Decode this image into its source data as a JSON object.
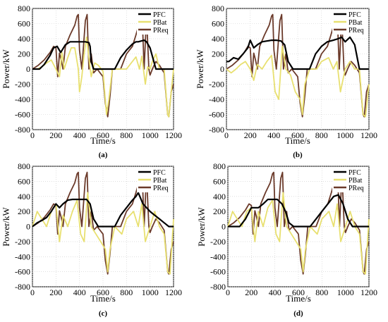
{
  "colors": {
    "PFC": "#000000",
    "PBat": "#e8e070",
    "PReq": "#6b3a2a",
    "grid": "#cccccc"
  },
  "common": {
    "legend": [
      "PFC",
      "PBat",
      "PReq"
    ],
    "xlabel": "Time/s",
    "ylabel": "Power/kW",
    "xlim": [
      0,
      1200
    ],
    "ylim": [
      -800,
      800
    ],
    "xticks": [
      0,
      200,
      400,
      600,
      800,
      1000,
      1200
    ],
    "yticks": [
      -800,
      -600,
      -400,
      -200,
      0,
      200,
      400,
      600,
      800
    ]
  },
  "chart_data": [
    {
      "type": "line",
      "caption": "(a)",
      "xlabel": "Time/s",
      "ylabel": "Power/kW",
      "xlim": [
        0,
        1200
      ],
      "ylim": [
        -800,
        800
      ],
      "grid": true,
      "legend_position": "top-right",
      "series": [
        {
          "name": "PFC",
          "x": [
            0,
            60,
            100,
            150,
            180,
            210,
            240,
            280,
            320,
            360,
            400,
            450,
            480,
            490,
            500,
            520,
            550,
            600,
            650,
            700,
            750,
            800,
            850,
            880,
            900,
            950,
            970,
            1000,
            1050,
            1100,
            1150,
            1200
          ],
          "y": [
            0,
            0,
            60,
            180,
            280,
            300,
            220,
            320,
            360,
            360,
            360,
            360,
            350,
            300,
            100,
            0,
            0,
            0,
            0,
            0,
            150,
            250,
            330,
            360,
            360,
            380,
            360,
            280,
            0,
            0,
            0,
            0
          ]
        },
        {
          "name": "PBat",
          "x": [
            0,
            40,
            80,
            120,
            160,
            200,
            230,
            250,
            270,
            300,
            330,
            360,
            390,
            400,
            420,
            440,
            460,
            480,
            500,
            530,
            560,
            600,
            630,
            650,
            680,
            720,
            800,
            880,
            910,
            930,
            960,
            980,
            1000,
            1020,
            1050,
            1080,
            1120,
            1150,
            1160,
            1180,
            1200
          ],
          "y": [
            0,
            0,
            30,
            80,
            120,
            0,
            -100,
            220,
            0,
            150,
            280,
            280,
            0,
            -300,
            -100,
            200,
            420,
            150,
            -100,
            80,
            50,
            -30,
            -600,
            -400,
            0,
            0,
            0,
            160,
            0,
            170,
            -200,
            30,
            0,
            100,
            200,
            0,
            0,
            -600,
            -630,
            -300,
            0
          ]
        },
        {
          "name": "PReq",
          "x": [
            0,
            50,
            100,
            150,
            180,
            200,
            215,
            230,
            245,
            260,
            280,
            320,
            360,
            380,
            390,
            400,
            420,
            450,
            465,
            480,
            500,
            520,
            550,
            600,
            620,
            640,
            660,
            680,
            700,
            750,
            800,
            850,
            880,
            900,
            920,
            935,
            950,
            970,
            990,
            1000,
            1020,
            1050,
            1080,
            1120,
            1150,
            1160,
            1180,
            1200
          ],
          "y": [
            0,
            50,
            120,
            220,
            300,
            280,
            -100,
            210,
            120,
            0,
            300,
            450,
            580,
            700,
            720,
            250,
            0,
            640,
            720,
            0,
            200,
            -50,
            0,
            -100,
            -450,
            -630,
            -350,
            0,
            0,
            0,
            200,
            300,
            450,
            560,
            700,
            640,
            0,
            700,
            0,
            -80,
            0,
            100,
            50,
            -50,
            -600,
            -630,
            -300,
            -200
          ]
        }
      ]
    },
    {
      "type": "line",
      "caption": "(b)",
      "xlabel": "Time/s",
      "ylabel": "Power/kW",
      "xlim": [
        0,
        1200
      ],
      "ylim": [
        -800,
        800
      ],
      "grid": true,
      "legend_position": "top-right",
      "series": [
        {
          "name": "PFC",
          "x": [
            0,
            20,
            60,
            100,
            140,
            180,
            200,
            230,
            260,
            300,
            340,
            380,
            420,
            460,
            490,
            520,
            560,
            600,
            650,
            700,
            750,
            800,
            850,
            900,
            940,
            970,
            1000,
            1040,
            1080,
            1120,
            1160,
            1200
          ],
          "y": [
            100,
            100,
            150,
            130,
            200,
            280,
            380,
            280,
            320,
            360,
            370,
            380,
            380,
            370,
            320,
            100,
            0,
            0,
            0,
            0,
            200,
            300,
            360,
            380,
            400,
            420,
            360,
            420,
            320,
            0,
            0,
            0
          ]
        },
        {
          "name": "PBat",
          "x": [
            0,
            40,
            80,
            120,
            160,
            200,
            230,
            260,
            300,
            340,
            380,
            410,
            440,
            470,
            500,
            540,
            580,
            620,
            640,
            660,
            700,
            760,
            800,
            860,
            900,
            930,
            960,
            1000,
            1040,
            1080,
            1120,
            1150,
            1170,
            1200
          ],
          "y": [
            0,
            -50,
            0,
            60,
            100,
            0,
            -150,
            60,
            0,
            100,
            180,
            -300,
            -400,
            300,
            0,
            -80,
            -300,
            -400,
            -600,
            -200,
            0,
            0,
            100,
            150,
            0,
            100,
            -300,
            0,
            100,
            0,
            0,
            -600,
            -630,
            -200
          ]
        },
        {
          "name": "PReq",
          "x": [
            0,
            50,
            100,
            150,
            180,
            200,
            215,
            230,
            245,
            260,
            280,
            320,
            360,
            380,
            390,
            400,
            420,
            450,
            465,
            480,
            500,
            520,
            550,
            600,
            620,
            640,
            660,
            680,
            700,
            750,
            800,
            850,
            880,
            900,
            920,
            935,
            950,
            970,
            990,
            1000,
            1020,
            1050,
            1080,
            1120,
            1150,
            1160,
            1180,
            1200
          ],
          "y": [
            0,
            50,
            120,
            220,
            300,
            280,
            -100,
            210,
            120,
            0,
            300,
            450,
            580,
            700,
            720,
            250,
            0,
            640,
            720,
            0,
            200,
            -50,
            0,
            -100,
            -450,
            -630,
            -350,
            0,
            0,
            0,
            200,
            300,
            450,
            560,
            700,
            640,
            0,
            700,
            0,
            -80,
            0,
            100,
            50,
            -50,
            -600,
            -630,
            -300,
            -200
          ]
        }
      ]
    },
    {
      "type": "line",
      "caption": "(c)",
      "xlabel": "Time/s",
      "ylabel": "Power/kW",
      "xlim": [
        0,
        1200
      ],
      "ylim": [
        -800,
        800
      ],
      "grid": true,
      "legend_position": "top-right",
      "series": [
        {
          "name": "PFC",
          "x": [
            0,
            40,
            80,
            120,
            160,
            200,
            230,
            260,
            300,
            340,
            380,
            420,
            460,
            490,
            520,
            560,
            600,
            650,
            700,
            750,
            800,
            850,
            880,
            900,
            940,
            970,
            1000,
            1040,
            1080,
            1120,
            1160,
            1200
          ],
          "y": [
            0,
            50,
            80,
            120,
            200,
            300,
            250,
            300,
            350,
            360,
            360,
            360,
            360,
            300,
            100,
            0,
            0,
            0,
            0,
            150,
            250,
            350,
            400,
            450,
            300,
            250,
            200,
            150,
            100,
            50,
            0,
            0
          ]
        },
        {
          "name": "PBat",
          "x": [
            0,
            40,
            80,
            120,
            160,
            200,
            230,
            260,
            300,
            340,
            380,
            410,
            440,
            470,
            500,
            540,
            580,
            620,
            640,
            660,
            700,
            760,
            800,
            860,
            900,
            930,
            960,
            1000,
            1040,
            1080,
            1120,
            1150,
            1170,
            1200
          ],
          "y": [
            0,
            200,
            100,
            0,
            200,
            300,
            -200,
            150,
            0,
            200,
            350,
            -100,
            -200,
            450,
            0,
            -100,
            -200,
            -300,
            -600,
            -300,
            0,
            -100,
            100,
            200,
            0,
            300,
            -200,
            0,
            200,
            0,
            -100,
            -600,
            -630,
            100
          ]
        },
        {
          "name": "PReq",
          "x": [
            0,
            50,
            100,
            150,
            180,
            200,
            215,
            230,
            245,
            260,
            280,
            320,
            360,
            380,
            390,
            400,
            420,
            450,
            465,
            480,
            500,
            520,
            550,
            600,
            620,
            640,
            660,
            680,
            700,
            750,
            800,
            850,
            880,
            900,
            920,
            935,
            950,
            970,
            990,
            1000,
            1020,
            1050,
            1080,
            1120,
            1150,
            1160,
            1180,
            1200
          ],
          "y": [
            0,
            50,
            120,
            220,
            300,
            280,
            -100,
            210,
            120,
            0,
            300,
            450,
            580,
            700,
            720,
            250,
            0,
            640,
            720,
            0,
            200,
            -50,
            0,
            -100,
            -450,
            -630,
            -350,
            0,
            0,
            0,
            200,
            300,
            450,
            560,
            700,
            640,
            0,
            700,
            0,
            -80,
            0,
            100,
            50,
            -50,
            -600,
            -630,
            -300,
            -200
          ]
        }
      ]
    },
    {
      "type": "line",
      "caption": "(d)",
      "xlabel": "Time/s",
      "ylabel": "Power/kW",
      "xlim": [
        0,
        1200
      ],
      "ylim": [
        -800,
        800
      ],
      "grid": true,
      "legend_position": "top-right",
      "series": [
        {
          "name": "PFC",
          "x": [
            0,
            60,
            100,
            150,
            200,
            260,
            300,
            340,
            380,
            420,
            460,
            490,
            520,
            560,
            600,
            650,
            700,
            750,
            800,
            850,
            900,
            940,
            980,
            1020,
            1060,
            1100,
            1140,
            1200
          ],
          "y": [
            0,
            0,
            0,
            100,
            250,
            250,
            300,
            360,
            360,
            360,
            300,
            200,
            50,
            0,
            0,
            0,
            0,
            100,
            200,
            300,
            400,
            420,
            300,
            100,
            0,
            0,
            0,
            0
          ]
        },
        {
          "name": "PBat",
          "x": [
            0,
            40,
            80,
            120,
            160,
            200,
            230,
            260,
            300,
            340,
            380,
            410,
            440,
            470,
            500,
            540,
            580,
            620,
            640,
            660,
            700,
            760,
            800,
            860,
            900,
            930,
            960,
            1000,
            1040,
            1080,
            1120,
            1150,
            1170,
            1200
          ],
          "y": [
            0,
            200,
            100,
            0,
            200,
            250,
            -200,
            200,
            0,
            250,
            350,
            -100,
            -200,
            450,
            0,
            -100,
            -200,
            -300,
            -600,
            -300,
            0,
            -100,
            100,
            200,
            0,
            300,
            -200,
            0,
            200,
            0,
            -100,
            -600,
            -630,
            100
          ]
        },
        {
          "name": "PReq",
          "x": [
            0,
            50,
            100,
            150,
            180,
            200,
            215,
            230,
            245,
            260,
            280,
            320,
            360,
            380,
            390,
            400,
            420,
            450,
            465,
            480,
            500,
            520,
            550,
            600,
            620,
            640,
            660,
            680,
            700,
            750,
            800,
            850,
            880,
            900,
            920,
            935,
            950,
            970,
            990,
            1000,
            1020,
            1050,
            1080,
            1120,
            1150,
            1160,
            1180,
            1200
          ],
          "y": [
            0,
            50,
            120,
            220,
            300,
            280,
            -100,
            210,
            120,
            0,
            300,
            450,
            580,
            700,
            720,
            250,
            0,
            640,
            720,
            0,
            200,
            -50,
            0,
            -100,
            -450,
            -630,
            -350,
            0,
            0,
            0,
            200,
            300,
            450,
            560,
            700,
            640,
            0,
            700,
            0,
            -80,
            0,
            100,
            50,
            -50,
            -600,
            -630,
            -300,
            -200
          ]
        }
      ]
    }
  ]
}
